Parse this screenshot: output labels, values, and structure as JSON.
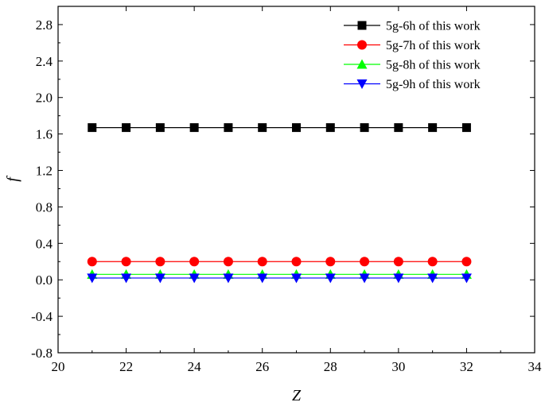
{
  "chart_data": {
    "type": "line",
    "xlabel": "Z",
    "ylabel": "f",
    "xlim": [
      20,
      34
    ],
    "ylim": [
      -0.8,
      3.0
    ],
    "xticks": [
      20,
      22,
      24,
      26,
      28,
      30,
      32,
      34
    ],
    "yticks": [
      -0.8,
      -0.4,
      0.0,
      0.4,
      0.8,
      1.2,
      1.6,
      2.0,
      2.4,
      2.8
    ],
    "xtick_labels": [
      "20",
      "22",
      "24",
      "26",
      "28",
      "30",
      "32",
      "34"
    ],
    "ytick_labels": [
      "-0.8",
      "-0.4",
      "0.0",
      "0.4",
      "0.8",
      "1.2",
      "1.6",
      "2.0",
      "2.4",
      "2.8"
    ],
    "grid": false,
    "legend_position": "top-right",
    "x": [
      21,
      22,
      23,
      24,
      25,
      26,
      27,
      28,
      29,
      30,
      31,
      32
    ],
    "series": [
      {
        "name": "5g-6h of this work",
        "color": "#000000",
        "marker": "square",
        "values": [
          1.67,
          1.67,
          1.67,
          1.67,
          1.67,
          1.67,
          1.67,
          1.67,
          1.67,
          1.67,
          1.67,
          1.67
        ]
      },
      {
        "name": "5g-7h of this work",
        "color": "#ff0000",
        "marker": "circle",
        "values": [
          0.2,
          0.2,
          0.2,
          0.2,
          0.2,
          0.2,
          0.2,
          0.2,
          0.2,
          0.2,
          0.2,
          0.2
        ]
      },
      {
        "name": "5g-8h of this work",
        "color": "#00ff00",
        "marker": "triangle-up",
        "values": [
          0.06,
          0.06,
          0.06,
          0.06,
          0.06,
          0.06,
          0.06,
          0.06,
          0.06,
          0.06,
          0.06,
          0.06
        ]
      },
      {
        "name": "5g-9h of this work",
        "color": "#0000ff",
        "marker": "triangle-down",
        "values": [
          0.02,
          0.02,
          0.02,
          0.02,
          0.02,
          0.02,
          0.02,
          0.02,
          0.02,
          0.02,
          0.02,
          0.02
        ]
      }
    ]
  }
}
